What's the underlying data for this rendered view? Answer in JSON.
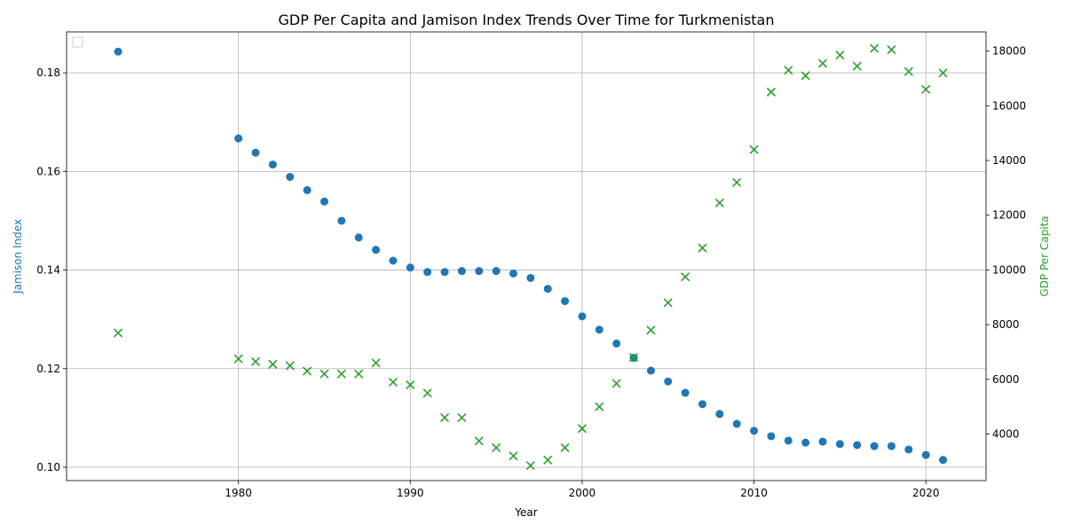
{
  "chart_data": {
    "type": "scatter",
    "title": "GDP Per Capita and Jamison Index Trends Over Time for Turkmenistan",
    "xlabel": "Year",
    "ylabel_left": "Jamison Index",
    "ylabel_right": "GDP Per Capita",
    "xlim": [
      1970,
      2023.5
    ],
    "ylim_left": [
      0.0973,
      0.1883
    ],
    "ylim_right": [
      2300,
      18700
    ],
    "x_ticks": [
      1980,
      1990,
      2000,
      2010,
      2020
    ],
    "y_left_ticks": [
      0.1,
      0.12,
      0.14,
      0.16,
      0.18
    ],
    "y_left_tick_labels": [
      "0.10",
      "0.12",
      "0.14",
      "0.16",
      "0.18"
    ],
    "y_right_ticks": [
      4000,
      6000,
      8000,
      10000,
      12000,
      14000,
      16000,
      18000
    ],
    "grid": true,
    "legend": "top-left",
    "colors": {
      "jamison": "#1f77b4",
      "gdp": "#2ca02c"
    },
    "series": [
      {
        "axis": "left",
        "marker": "circle",
        "x": [
          1973,
          1980,
          1981,
          1982,
          1983,
          1984,
          1985,
          1986,
          1987,
          1988,
          1989,
          1990,
          1991,
          1992,
          1993,
          1994,
          1995,
          1996,
          1997,
          1998,
          1999,
          2000,
          2001,
          2002,
          2003,
          2004,
          2005,
          2006,
          2007,
          2008,
          2009,
          2010,
          2011,
          2012,
          2013,
          2014,
          2015,
          2016,
          2017,
          2018,
          2019,
          2020,
          2021
        ],
        "values": [
          0.1843,
          0.1667,
          0.1638,
          0.1614,
          0.1589,
          0.1562,
          0.1539,
          0.15,
          0.1466,
          0.1441,
          0.1419,
          0.1405,
          0.1396,
          0.1396,
          0.1398,
          0.1398,
          0.1398,
          0.1393,
          0.1384,
          0.1362,
          0.1337,
          0.1306,
          0.1279,
          0.1251,
          0.1222,
          0.1196,
          0.1174,
          0.1151,
          0.1128,
          0.1108,
          0.1088,
          0.1074,
          0.1063,
          0.1054,
          0.105,
          0.1052,
          0.1047,
          0.1045,
          0.1043,
          0.1043,
          0.1036,
          0.1025,
          0.1015
        ]
      },
      {
        "axis": "right",
        "marker": "x",
        "x": [
          1973,
          1980,
          1981,
          1982,
          1983,
          1984,
          1985,
          1986,
          1987,
          1988,
          1989,
          1990,
          1991,
          1992,
          1993,
          1994,
          1995,
          1996,
          1997,
          1998,
          1999,
          2000,
          2001,
          2002,
          2003,
          2004,
          2005,
          2006,
          2007,
          2008,
          2009,
          2010,
          2011,
          2012,
          2013,
          2014,
          2015,
          2016,
          2017,
          2018,
          2019,
          2020,
          2021
        ],
        "values": [
          7700,
          6750,
          6650,
          6550,
          6500,
          6300,
          6200,
          6200,
          6200,
          6600,
          5900,
          5800,
          5500,
          4600,
          4600,
          3750,
          3500,
          3200,
          2850,
          3050,
          3500,
          4200,
          5000,
          5850,
          6800,
          7800,
          8800,
          9750,
          10800,
          12450,
          13200,
          14400,
          16500,
          17300,
          17100,
          17550,
          17850,
          17450,
          18100,
          18050,
          17250,
          16600,
          17200
        ]
      }
    ]
  }
}
